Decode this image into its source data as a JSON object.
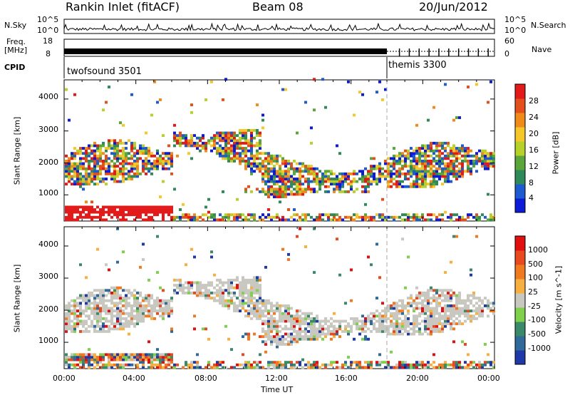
{
  "header": {
    "station": "Rankin Inlet (fitACF)",
    "beam": "Beam 08",
    "date": "20/Jun/2012"
  },
  "status_panels": {
    "nsky_label": "N.Sky",
    "nsearch_label": "N.Search",
    "nsky_ticks": [
      "10^5",
      "10^0"
    ],
    "nsearch_ticks": [
      "10^5",
      "10^0"
    ],
    "freq_label": "Freq.",
    "freq_unit": "[MHz]",
    "freq_ticks": [
      "18",
      "8"
    ],
    "nave_label": "Nave",
    "nave_ticks": [
      "60",
      "0"
    ],
    "cpid_label": "CPID",
    "modes": [
      {
        "name": "twofsound 3501",
        "start_hour": 0
      },
      {
        "name": "themis 3300",
        "start_hour": 18
      }
    ]
  },
  "chart_data": [
    {
      "type": "heatmap",
      "title": "",
      "xlabel": "Time UT",
      "ylabel": "Slant Range [km]",
      "x_ticks": [
        "00:00",
        "04:00",
        "08:00",
        "12:00",
        "16:00",
        "20:00",
        "00:00"
      ],
      "xlim": [
        0,
        24
      ],
      "y_ticks": [
        "1000",
        "2000",
        "3000",
        "4000"
      ],
      "ylim": [
        180,
        4600
      ],
      "colorbar": {
        "label": "Power [dB]",
        "ticks": [
          "28",
          "24",
          "20",
          "16",
          "12",
          "8",
          "4"
        ],
        "range": [
          0,
          30
        ],
        "colors": [
          "#0b1bd8",
          "#1f5bd0",
          "#2f8a5a",
          "#5aa63a",
          "#b6d22a",
          "#f5c72a",
          "#f08a1a",
          "#e4501c",
          "#e21a1a"
        ]
      },
      "mode_change_hour": 18
    },
    {
      "type": "heatmap",
      "title": "",
      "xlabel": "Time UT",
      "ylabel": "Slant Range [km]",
      "x_ticks": [
        "00:00",
        "04:00",
        "08:00",
        "12:00",
        "16:00",
        "20:00",
        "00:00"
      ],
      "xlim": [
        0,
        24
      ],
      "y_ticks": [
        "1000",
        "2000",
        "3000",
        "4000"
      ],
      "ylim": [
        180,
        4600
      ],
      "colorbar": {
        "label": "Velocity [m s^-1]",
        "ticks": [
          "1000",
          "500",
          "100",
          "25",
          "-25",
          "-100",
          "-500",
          "-1000"
        ],
        "range": [
          -1200,
          1200
        ],
        "colors": [
          "#1f3aa8",
          "#2f6a9a",
          "#3a8a6a",
          "#7fd04a",
          "#c8c8c0",
          "#f7b040",
          "#f07a20",
          "#e84a20",
          "#e01010"
        ]
      },
      "mode_change_hour": 18
    }
  ]
}
